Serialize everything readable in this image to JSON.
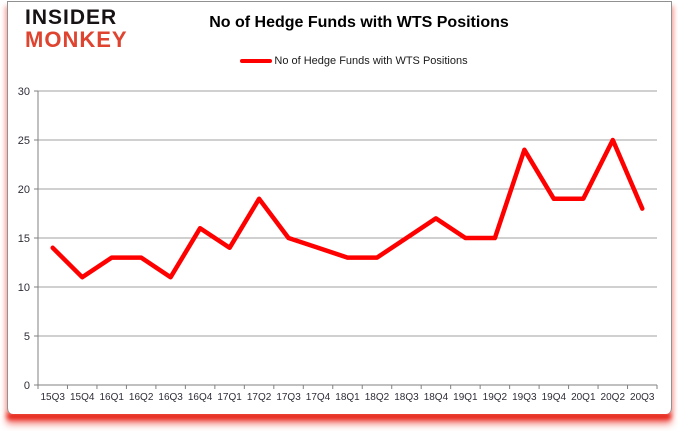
{
  "logo": {
    "line1": "INSIDER",
    "line2": "MONKEY",
    "line1_color": "#171314",
    "line2_color": "#de4430"
  },
  "title": "No of Hedge Funds with WTS Positions",
  "legend": {
    "label": "No of Hedge Funds with WTS Positions",
    "swatch_color": "#ff0000"
  },
  "colors": {
    "series_line": "#ff0000",
    "gridline": "#a0a0a0",
    "axis_line": "#808080",
    "axis_text": "#2e2e38",
    "card_border": "#919191",
    "bottom_glow": "#e8281d",
    "background": "#ffffff"
  },
  "chart_data": {
    "type": "line",
    "title": "No of Hedge Funds with WTS Positions",
    "xlabel": "",
    "ylabel": "",
    "categories": [
      "15Q3",
      "15Q4",
      "16Q1",
      "16Q2",
      "16Q3",
      "16Q4",
      "17Q1",
      "17Q2",
      "17Q3",
      "17Q4",
      "18Q1",
      "18Q2",
      "18Q3",
      "18Q4",
      "19Q1",
      "19Q2",
      "19Q3",
      "19Q4",
      "20Q1",
      "20Q2",
      "20Q3"
    ],
    "series": [
      {
        "name": "No of Hedge Funds with WTS Positions",
        "color": "#ff0000",
        "values": [
          14,
          11,
          13,
          13,
          11,
          16,
          14,
          19,
          15,
          14,
          13,
          13,
          15,
          17,
          15,
          15,
          24,
          19,
          19,
          25,
          18
        ]
      }
    ],
    "ylim": [
      0,
      30
    ],
    "yticks": [
      0,
      5,
      10,
      15,
      20,
      25,
      30
    ],
    "grid": true,
    "legend_position": "top-center"
  }
}
